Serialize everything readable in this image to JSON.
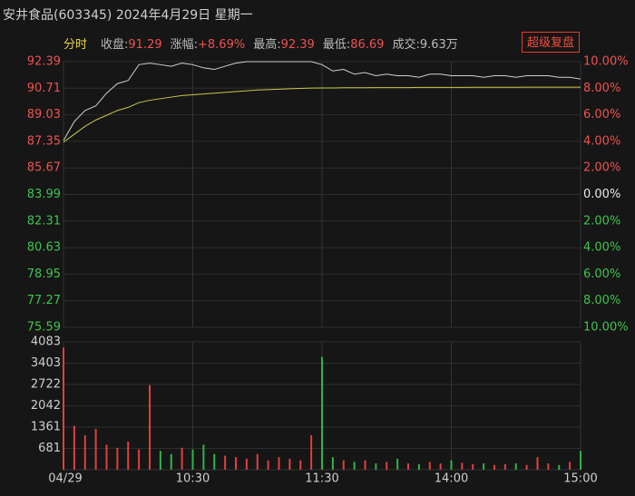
{
  "header": {
    "title": "安井食品(603345) 2024年4月29日 星期一",
    "mode": "分时",
    "stats": [
      {
        "label": "收盘:",
        "value": 91.29
      },
      {
        "label": "涨幅:",
        "value": "+8.69%"
      },
      {
        "label": "最高:",
        "value": 92.39
      },
      {
        "label": "最低:",
        "value": 86.69
      },
      {
        "label": "成交:",
        "value": "9.63万"
      }
    ],
    "button": "超级复盘"
  },
  "chart_data": [
    {
      "type": "line",
      "xlim": [
        0,
        240
      ],
      "ylim": [
        75.59,
        92.39
      ],
      "yticks": [
        92.39,
        90.71,
        89.03,
        87.35,
        85.67,
        83.99,
        82.31,
        80.63,
        78.95,
        77.27,
        75.59
      ],
      "y2lim": [
        -10,
        10
      ],
      "y2ticks": [
        {
          "value": 10,
          "label": "10.00%"
        },
        {
          "value": 8,
          "label": "8.00%"
        },
        {
          "value": 6,
          "label": "6.00%"
        },
        {
          "value": 4,
          "label": "4.00%"
        },
        {
          "value": 2,
          "label": "2.00%"
        },
        {
          "value": 0,
          "label": "0.00%"
        },
        {
          "value": -2,
          "label": "2.00%"
        },
        {
          "value": -4,
          "label": "4.00%"
        },
        {
          "value": -6,
          "label": "6.00%"
        },
        {
          "value": -8,
          "label": "8.00%"
        },
        {
          "value": -10,
          "label": "10.00%"
        }
      ],
      "x": [
        0,
        5,
        10,
        15,
        20,
        25,
        30,
        35,
        40,
        45,
        50,
        55,
        60,
        65,
        70,
        75,
        80,
        85,
        90,
        95,
        100,
        105,
        110,
        115,
        120,
        125,
        130,
        135,
        140,
        145,
        150,
        155,
        160,
        165,
        170,
        175,
        180,
        185,
        190,
        195,
        200,
        205,
        210,
        215,
        220,
        225,
        230,
        235,
        240
      ],
      "series": [
        {
          "color": "#cfcfcf",
          "values": [
            87.4,
            88.6,
            89.3,
            89.6,
            90.4,
            91.0,
            91.2,
            92.2,
            92.3,
            92.2,
            92.1,
            92.3,
            92.2,
            92.0,
            91.9,
            92.1,
            92.3,
            92.39,
            92.39,
            92.39,
            92.39,
            92.39,
            92.39,
            92.39,
            92.2,
            91.8,
            91.9,
            91.6,
            91.7,
            91.5,
            91.6,
            91.5,
            91.5,
            91.4,
            91.6,
            91.6,
            91.5,
            91.5,
            91.5,
            91.4,
            91.5,
            91.5,
            91.4,
            91.5,
            91.5,
            91.5,
            91.4,
            91.4,
            91.29
          ]
        },
        {
          "color": "#c9c94a",
          "values": [
            87.3,
            87.8,
            88.3,
            88.7,
            89.0,
            89.3,
            89.5,
            89.8,
            89.95,
            90.05,
            90.15,
            90.25,
            90.3,
            90.35,
            90.4,
            90.45,
            90.5,
            90.55,
            90.6,
            90.62,
            90.65,
            90.68,
            90.7,
            90.72,
            90.73,
            90.73,
            90.74,
            90.74,
            90.74,
            90.75,
            90.75,
            90.75,
            90.75,
            90.76,
            90.76,
            90.76,
            90.76,
            90.76,
            90.77,
            90.77,
            90.77,
            90.77,
            90.77,
            90.78,
            90.78,
            90.78,
            90.78,
            90.78,
            90.78
          ]
        }
      ]
    },
    {
      "type": "bar",
      "xlim": [
        0,
        240
      ],
      "ylim": [
        0,
        4083
      ],
      "yticks": [
        4083,
        3403,
        2722,
        2042,
        1361,
        681
      ],
      "xticks": [
        {
          "value": 0,
          "label": "04/29"
        },
        {
          "value": 60,
          "label": "10:30"
        },
        {
          "value": 120,
          "label": "11:30"
        },
        {
          "value": 180,
          "label": "14:00"
        },
        {
          "value": 240,
          "label": "15:00"
        }
      ],
      "x": [
        0,
        5,
        10,
        15,
        20,
        25,
        30,
        35,
        40,
        45,
        50,
        55,
        60,
        65,
        70,
        75,
        80,
        85,
        90,
        95,
        100,
        105,
        110,
        115,
        120,
        125,
        130,
        135,
        140,
        145,
        150,
        155,
        160,
        165,
        170,
        175,
        180,
        185,
        190,
        195,
        200,
        205,
        210,
        215,
        220,
        225,
        230,
        235,
        240
      ],
      "up_color": "#e0403f",
      "down_color": "#2fb34a",
      "values": [
        3900,
        1400,
        1100,
        1300,
        800,
        700,
        900,
        650,
        2700,
        600,
        500,
        700,
        650,
        800,
        500,
        450,
        400,
        350,
        500,
        300,
        400,
        350,
        300,
        1100,
        3600,
        400,
        300,
        250,
        300,
        200,
        250,
        350,
        200,
        180,
        250,
        200,
        300,
        220,
        180,
        200,
        150,
        180,
        200,
        150,
        400,
        200,
        150,
        250,
        600
      ]
    }
  ]
}
